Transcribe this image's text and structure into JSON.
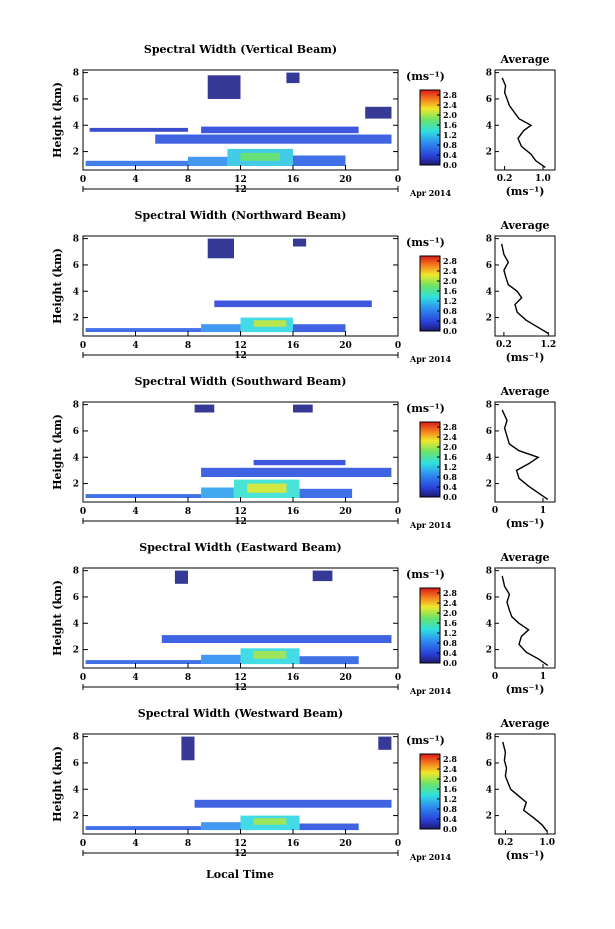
{
  "chart_data": [
    {
      "type": "heatmap",
      "title": "Spectral Width (Vertical Beam)",
      "ylabel": "Height (km)",
      "xlabel": "",
      "x_ticks": [
        "0",
        "4",
        "8",
        "12",
        "16",
        "20",
        "0"
      ],
      "y_ticks": [
        "2",
        "4",
        "6",
        "8"
      ],
      "xlim": [
        0,
        24
      ],
      "ylim": [
        0.6,
        8.2
      ],
      "date_marker": "12",
      "date_label": "Apr 2014",
      "colorbar": {
        "unit": "(ms⁻¹)",
        "ticks": [
          "2.8",
          "2.4",
          "2.0",
          "1.6",
          "1.2",
          "0.8",
          "0.4",
          "0.0"
        ],
        "range": [
          0,
          3.0
        ]
      },
      "cells": [
        {
          "x0": 0.2,
          "x1": 8.0,
          "y0": 0.9,
          "y1": 1.3,
          "v": 0.7
        },
        {
          "x0": 8.0,
          "x1": 11.0,
          "y0": 0.9,
          "y1": 1.6,
          "v": 0.9
        },
        {
          "x0": 11.0,
          "x1": 16.0,
          "y0": 0.9,
          "y1": 2.2,
          "v": 1.2
        },
        {
          "x0": 12.0,
          "x1": 15.0,
          "y0": 1.3,
          "y1": 1.9,
          "v": 1.8
        },
        {
          "x0": 16.0,
          "x1": 20.0,
          "y0": 0.9,
          "y1": 1.7,
          "v": 0.6
        },
        {
          "x0": 5.5,
          "x1": 23.5,
          "y0": 2.6,
          "y1": 3.3,
          "v": 0.5
        },
        {
          "x0": 9.0,
          "x1": 21.0,
          "y0": 3.4,
          "y1": 3.9,
          "v": 0.4
        },
        {
          "x0": 0.5,
          "x1": 8.0,
          "y0": 3.5,
          "y1": 3.8,
          "v": 0.3
        },
        {
          "x0": 9.5,
          "x1": 12.0,
          "y0": 6.0,
          "y1": 7.8,
          "v": 0.1
        },
        {
          "x0": 15.5,
          "x1": 16.5,
          "y0": 7.2,
          "y1": 8.0,
          "v": 0.1
        },
        {
          "x0": 21.5,
          "x1": 23.5,
          "y0": 4.5,
          "y1": 5.4,
          "v": 0.1
        }
      ]
    },
    {
      "type": "line",
      "title": "Average",
      "xlabel": "(ms⁻¹)",
      "ylabel": "",
      "x_ticks": [
        "0.2",
        "1.0"
      ],
      "xlim": [
        0.0,
        1.25
      ],
      "y_ticks": [
        "2",
        "4",
        "6",
        "8"
      ],
      "ylim": [
        0.6,
        8.2
      ],
      "series": [
        {
          "x": [
            1.05,
            0.85,
            0.75,
            0.55,
            0.48,
            0.6,
            0.75,
            0.5,
            0.4,
            0.3,
            0.25,
            0.2,
            0.22,
            0.15
          ],
          "y": [
            0.8,
            1.3,
            1.8,
            2.4,
            3.0,
            3.6,
            4.0,
            4.5,
            5.0,
            5.5,
            6.0,
            6.5,
            7.0,
            7.6
          ]
        }
      ]
    },
    {
      "type": "heatmap",
      "title": "Spectral Width (Northward Beam)",
      "ylabel": "Height (km)",
      "xlabel": "",
      "x_ticks": [
        "0",
        "4",
        "8",
        "12",
        "16",
        "20",
        "0"
      ],
      "y_ticks": [
        "2",
        "4",
        "6",
        "8"
      ],
      "xlim": [
        0,
        24
      ],
      "ylim": [
        0.6,
        8.2
      ],
      "date_marker": "12",
      "date_label": "Apr 2014",
      "colorbar": {
        "unit": "(ms⁻¹)",
        "ticks": [
          "2.8",
          "2.4",
          "2.0",
          "1.6",
          "1.2",
          "0.8",
          "0.4",
          "0.0"
        ],
        "range": [
          0,
          3.0
        ]
      },
      "cells": [
        {
          "x0": 0.2,
          "x1": 9.0,
          "y0": 0.9,
          "y1": 1.2,
          "v": 0.6
        },
        {
          "x0": 9.0,
          "x1": 12.0,
          "y0": 0.9,
          "y1": 1.5,
          "v": 0.9
        },
        {
          "x0": 12.0,
          "x1": 16.0,
          "y0": 0.9,
          "y1": 2.0,
          "v": 1.3
        },
        {
          "x0": 13.0,
          "x1": 15.5,
          "y0": 1.3,
          "y1": 1.8,
          "v": 2.1
        },
        {
          "x0": 16.0,
          "x1": 20.0,
          "y0": 0.9,
          "y1": 1.5,
          "v": 0.5
        },
        {
          "x0": 10.0,
          "x1": 22.0,
          "y0": 2.8,
          "y1": 3.3,
          "v": 0.4
        },
        {
          "x0": 9.5,
          "x1": 11.5,
          "y0": 6.5,
          "y1": 8.0,
          "v": 0.1
        },
        {
          "x0": 16.0,
          "x1": 17.0,
          "y0": 7.4,
          "y1": 8.0,
          "v": 0.1
        }
      ]
    },
    {
      "type": "line",
      "title": "Average",
      "xlabel": "(ms⁻¹)",
      "ylabel": "",
      "x_ticks": [
        "0.2",
        "1.2"
      ],
      "xlim": [
        0.0,
        1.35
      ],
      "y_ticks": [
        "2",
        "4",
        "6",
        "8"
      ],
      "ylim": [
        0.6,
        8.2
      ],
      "series": [
        {
          "x": [
            1.2,
            0.95,
            0.7,
            0.5,
            0.45,
            0.6,
            0.5,
            0.3,
            0.25,
            0.2,
            0.3,
            0.2,
            0.15
          ],
          "y": [
            0.8,
            1.3,
            1.8,
            2.4,
            3.0,
            3.5,
            4.0,
            4.5,
            5.0,
            5.6,
            6.2,
            6.8,
            7.6
          ]
        }
      ]
    },
    {
      "type": "heatmap",
      "title": "Spectral Width (Southward Beam)",
      "ylabel": "Height (km)",
      "xlabel": "",
      "x_ticks": [
        "0",
        "4",
        "8",
        "12",
        "16",
        "20",
        "0"
      ],
      "y_ticks": [
        "2",
        "4",
        "6",
        "8"
      ],
      "xlim": [
        0,
        24
      ],
      "ylim": [
        0.6,
        8.2
      ],
      "date_marker": "12",
      "date_label": "Apr 2014",
      "colorbar": {
        "unit": "(ms⁻¹)",
        "ticks": [
          "2.8",
          "2.4",
          "2.0",
          "1.6",
          "1.2",
          "0.8",
          "0.4",
          "0.0"
        ],
        "range": [
          0,
          3.0
        ]
      },
      "cells": [
        {
          "x0": 0.2,
          "x1": 9.0,
          "y0": 0.9,
          "y1": 1.2,
          "v": 0.6
        },
        {
          "x0": 9.0,
          "x1": 11.5,
          "y0": 0.9,
          "y1": 1.7,
          "v": 1.0
        },
        {
          "x0": 11.5,
          "x1": 16.5,
          "y0": 0.9,
          "y1": 2.3,
          "v": 1.4
        },
        {
          "x0": 12.5,
          "x1": 15.5,
          "y0": 1.3,
          "y1": 2.0,
          "v": 2.2
        },
        {
          "x0": 16.5,
          "x1": 20.5,
          "y0": 0.9,
          "y1": 1.6,
          "v": 0.6
        },
        {
          "x0": 9.0,
          "x1": 23.5,
          "y0": 2.5,
          "y1": 3.2,
          "v": 0.5
        },
        {
          "x0": 13.0,
          "x1": 20.0,
          "y0": 3.4,
          "y1": 3.8,
          "v": 0.4
        },
        {
          "x0": 8.5,
          "x1": 10.0,
          "y0": 7.4,
          "y1": 8.0,
          "v": 0.1
        },
        {
          "x0": 16.0,
          "x1": 17.5,
          "y0": 7.4,
          "y1": 8.0,
          "v": 0.1
        }
      ]
    },
    {
      "type": "line",
      "title": "Average",
      "xlabel": "(ms⁻¹)",
      "ylabel": "",
      "x_ticks": [
        "0",
        "1"
      ],
      "xlim": [
        0.0,
        1.25
      ],
      "y_ticks": [
        "2",
        "4",
        "6",
        "8"
      ],
      "ylim": [
        0.6,
        8.2
      ],
      "series": [
        {
          "x": [
            1.1,
            0.9,
            0.7,
            0.5,
            0.45,
            0.7,
            0.9,
            0.5,
            0.3,
            0.25,
            0.2,
            0.25,
            0.15
          ],
          "y": [
            0.8,
            1.3,
            1.8,
            2.4,
            3.0,
            3.5,
            4.0,
            4.5,
            5.0,
            5.6,
            6.2,
            6.8,
            7.6
          ]
        }
      ]
    },
    {
      "type": "heatmap",
      "title": "Spectral Width (Eastward Beam)",
      "ylabel": "Height (km)",
      "xlabel": "",
      "x_ticks": [
        "0",
        "4",
        "8",
        "12",
        "16",
        "20",
        "0"
      ],
      "y_ticks": [
        "2",
        "4",
        "6",
        "8"
      ],
      "xlim": [
        0,
        24
      ],
      "ylim": [
        0.6,
        8.2
      ],
      "date_marker": "12",
      "date_label": "Apr 2014",
      "colorbar": {
        "unit": "(ms⁻¹)",
        "ticks": [
          "2.8",
          "2.4",
          "2.0",
          "1.6",
          "1.2",
          "0.8",
          "0.4",
          "0.0"
        ],
        "range": [
          0,
          3.0
        ]
      },
      "cells": [
        {
          "x0": 0.2,
          "x1": 9.0,
          "y0": 0.9,
          "y1": 1.2,
          "v": 0.6
        },
        {
          "x0": 9.0,
          "x1": 12.0,
          "y0": 0.9,
          "y1": 1.6,
          "v": 0.9
        },
        {
          "x0": 12.0,
          "x1": 16.5,
          "y0": 0.9,
          "y1": 2.1,
          "v": 1.3
        },
        {
          "x0": 13.0,
          "x1": 15.5,
          "y0": 1.3,
          "y1": 1.9,
          "v": 2.0
        },
        {
          "x0": 16.5,
          "x1": 21.0,
          "y0": 0.9,
          "y1": 1.5,
          "v": 0.6
        },
        {
          "x0": 6.0,
          "x1": 23.5,
          "y0": 2.5,
          "y1": 3.1,
          "v": 0.5
        },
        {
          "x0": 7.0,
          "x1": 8.0,
          "y0": 7.0,
          "y1": 8.0,
          "v": 0.1
        },
        {
          "x0": 17.5,
          "x1": 19.0,
          "y0": 7.2,
          "y1": 8.0,
          "v": 0.1
        }
      ]
    },
    {
      "type": "line",
      "title": "Average",
      "xlabel": "(ms⁻¹)",
      "ylabel": "",
      "x_ticks": [
        "0",
        "1"
      ],
      "xlim": [
        0.0,
        1.25
      ],
      "y_ticks": [
        "2",
        "4",
        "6",
        "8"
      ],
      "ylim": [
        0.6,
        8.2
      ],
      "series": [
        {
          "x": [
            1.1,
            0.9,
            0.65,
            0.5,
            0.55,
            0.7,
            0.5,
            0.35,
            0.3,
            0.25,
            0.3,
            0.2,
            0.15
          ],
          "y": [
            0.8,
            1.3,
            1.8,
            2.4,
            3.0,
            3.5,
            4.0,
            4.5,
            5.0,
            5.6,
            6.2,
            6.8,
            7.6
          ]
        }
      ]
    },
    {
      "type": "heatmap",
      "title": "Spectral Width (Westward Beam)",
      "ylabel": "Height (km)",
      "xlabel": "",
      "x_ticks": [
        "0",
        "4",
        "8",
        "12",
        "16",
        "20",
        "0"
      ],
      "y_ticks": [
        "2",
        "4",
        "6",
        "8"
      ],
      "xlim": [
        0,
        24
      ],
      "ylim": [
        0.6,
        8.2
      ],
      "date_marker": "12",
      "date_label": "Apr 2014",
      "colorbar": {
        "unit": "(ms⁻¹)",
        "ticks": [
          "2.8",
          "2.4",
          "2.0",
          "1.6",
          "1.2",
          "0.8",
          "0.4",
          "0.0"
        ],
        "range": [
          0,
          3.0
        ]
      },
      "cells": [
        {
          "x0": 0.2,
          "x1": 9.0,
          "y0": 0.9,
          "y1": 1.2,
          "v": 0.6
        },
        {
          "x0": 9.0,
          "x1": 12.0,
          "y0": 0.9,
          "y1": 1.5,
          "v": 0.9
        },
        {
          "x0": 12.0,
          "x1": 16.5,
          "y0": 0.9,
          "y1": 2.0,
          "v": 1.3
        },
        {
          "x0": 13.0,
          "x1": 15.5,
          "y0": 1.3,
          "y1": 1.8,
          "v": 2.0
        },
        {
          "x0": 16.5,
          "x1": 21.0,
          "y0": 0.9,
          "y1": 1.4,
          "v": 0.5
        },
        {
          "x0": 8.5,
          "x1": 23.5,
          "y0": 2.6,
          "y1": 3.2,
          "v": 0.5
        },
        {
          "x0": 7.5,
          "x1": 8.5,
          "y0": 6.2,
          "y1": 8.0,
          "v": 0.1
        },
        {
          "x0": 22.5,
          "x1": 23.5,
          "y0": 7.0,
          "y1": 8.0,
          "v": 0.1
        }
      ]
    },
    {
      "type": "line",
      "title": "Average",
      "xlabel": "(ms⁻¹)",
      "ylabel": "",
      "x_ticks": [
        "0.2",
        "1.0"
      ],
      "xlim": [
        0.0,
        1.15
      ],
      "y_ticks": [
        "2",
        "4",
        "6",
        "8"
      ],
      "ylim": [
        0.6,
        8.2
      ],
      "series": [
        {
          "x": [
            1.0,
            0.9,
            0.75,
            0.55,
            0.6,
            0.45,
            0.3,
            0.25,
            0.2,
            0.22,
            0.18,
            0.2,
            0.15
          ],
          "y": [
            0.8,
            1.3,
            1.8,
            2.4,
            3.0,
            3.5,
            4.0,
            4.5,
            5.0,
            5.6,
            6.2,
            6.8,
            7.6
          ]
        }
      ]
    }
  ],
  "footer": {
    "xlabel": "Local Time"
  }
}
